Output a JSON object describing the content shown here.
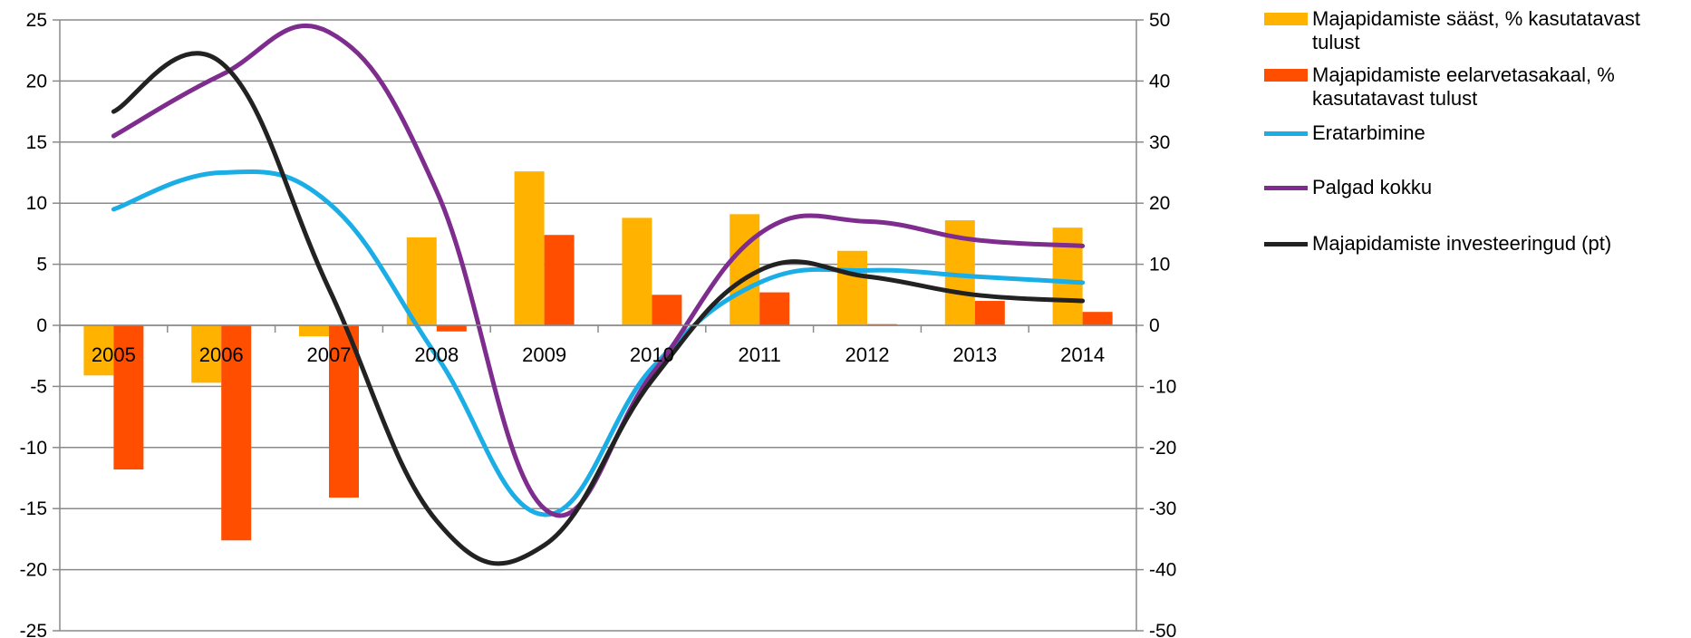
{
  "chart_data": {
    "type": "bar",
    "title": "",
    "xlabel": "",
    "ylabel": "",
    "categories": [
      "2005",
      "2006",
      "2007",
      "2008",
      "2009",
      "2010",
      "2011",
      "2012",
      "2013",
      "2014"
    ],
    "ylim_left": [
      -25,
      25
    ],
    "ylim_right": [
      -50,
      50
    ],
    "yticks_left": [
      "25",
      "20",
      "15",
      "10",
      "5",
      "0",
      "-5",
      "-10",
      "-15",
      "-20",
      "-25"
    ],
    "yticks_right": [
      "50",
      "40",
      "30",
      "20",
      "10",
      "0",
      "-10",
      "-20",
      "-30",
      "-40",
      "-50"
    ],
    "grid": true,
    "legend_position": "right",
    "series": [
      {
        "name": "Majapidamiste sääst, % kasutatavast tulust",
        "type": "bar",
        "axis": "left",
        "color": "#FFB300",
        "values": [
          -4.1,
          -4.7,
          -0.9,
          7.2,
          12.6,
          8.8,
          9.1,
          6.1,
          8.6,
          8.0
        ]
      },
      {
        "name": "Majapidamiste eelarvetasakaal, % kasutatavast tulust",
        "type": "bar",
        "axis": "left",
        "color": "#FF4E00",
        "values": [
          -11.8,
          -17.6,
          -14.1,
          -0.5,
          7.4,
          2.5,
          2.7,
          0.1,
          2.0,
          1.1
        ]
      },
      {
        "name": "Eratarbimine",
        "type": "line",
        "axis": "right",
        "color": "#1AADE6",
        "values": [
          19,
          25,
          20,
          -5,
          -31,
          -7,
          7,
          9,
          8,
          7
        ]
      },
      {
        "name": "Palgad kokku",
        "type": "line",
        "axis": "right",
        "color": "#7E2D8E",
        "values": [
          31,
          41,
          48,
          22,
          -30,
          -8,
          15,
          17,
          14,
          13
        ]
      },
      {
        "name": "Majapidamiste investeeringud (pt)",
        "type": "line",
        "axis": "right",
        "color": "#222222",
        "values": [
          35,
          43,
          6,
          -32,
          -36,
          -9,
          9,
          8,
          5,
          4
        ]
      }
    ]
  }
}
